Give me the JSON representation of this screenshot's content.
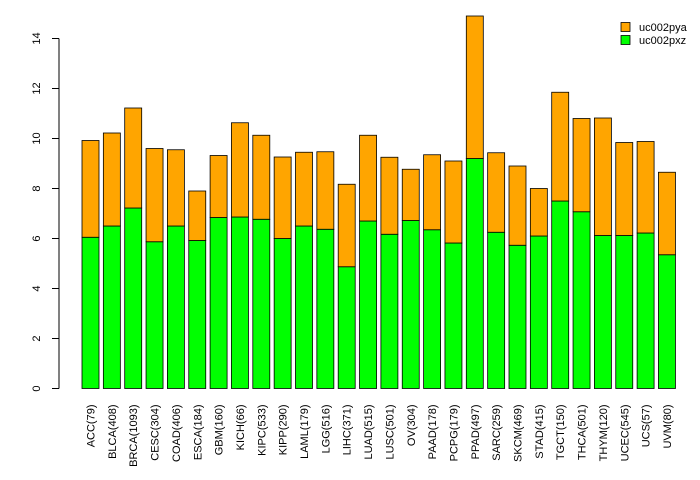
{
  "chart_data": {
    "type": "bar",
    "stacked": true,
    "title": "",
    "xlabel": "",
    "ylabel": "",
    "ylim": [
      0,
      15
    ],
    "yticks": [
      0,
      2,
      4,
      6,
      8,
      10,
      12,
      14
    ],
    "grid": false,
    "legend_position": "top-right",
    "categories": [
      "ACC(79)",
      "BLCA(408)",
      "BRCA(1093)",
      "CESC(304)",
      "COAD(406)",
      "ESCA(184)",
      "GBM(160)",
      "KICH(66)",
      "KIPC(533)",
      "KIPP(290)",
      "LAML(179)",
      "LGG(516)",
      "LIHC(371)",
      "LUAD(515)",
      "LUSC(501)",
      "OV(304)",
      "PAAD(178)",
      "PCPG(179)",
      "PPAD(497)",
      "SARC(259)",
      "SKCM(469)",
      "STAD(415)",
      "TGCT(150)",
      "THCA(501)",
      "THYM(120)",
      "UCEC(545)",
      "UCS(57)",
      "UVM(80)"
    ],
    "series": [
      {
        "name": "uc002pxz",
        "color": "#00ff00",
        "values": [
          6.05,
          6.5,
          7.22,
          5.87,
          6.5,
          5.92,
          6.84,
          6.86,
          6.77,
          6.0,
          6.5,
          6.37,
          4.87,
          6.7,
          6.17,
          6.72,
          6.35,
          5.82,
          9.2,
          6.25,
          5.73,
          6.1,
          7.5,
          7.07,
          6.12,
          6.12,
          6.22,
          5.35
        ]
      },
      {
        "name": "uc002pya",
        "color": "#ffa500",
        "values": [
          3.87,
          3.72,
          4.0,
          3.73,
          3.05,
          1.98,
          2.48,
          3.77,
          3.36,
          3.26,
          2.95,
          3.1,
          3.3,
          3.43,
          3.08,
          2.05,
          3.0,
          3.28,
          5.7,
          3.18,
          3.17,
          1.9,
          4.35,
          3.73,
          4.7,
          3.72,
          3.66,
          3.3
        ]
      }
    ]
  }
}
